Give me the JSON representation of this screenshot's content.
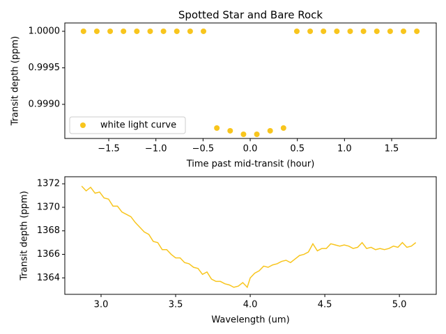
{
  "chart_data": [
    {
      "type": "scatter",
      "title": "Spotted Star and Bare Rock",
      "xlabel": "Time past mid-transit (hour)",
      "ylabel": "Transit depth (ppm)",
      "legend": "lower left",
      "series": [
        {
          "name": "white light curve",
          "color": "#f8c51d",
          "x": [
            -1.7678,
            -1.6264,
            -1.485,
            -1.3436,
            -1.2022,
            -1.0608,
            -0.9194,
            -0.778,
            -0.6366,
            -0.4952,
            -0.3538,
            -0.2124,
            -0.071,
            0.0704,
            0.2118,
            0.3532,
            0.4946,
            0.636,
            0.7774,
            0.9188,
            1.0602,
            1.2016,
            1.343,
            1.4844,
            1.6258,
            1.7672
          ],
          "values": [
            1.0,
            1.0,
            1.0,
            1.0,
            1.0,
            1.0,
            1.0,
            1.0,
            1.0,
            1.0,
            0.998676,
            0.998638,
            0.99859,
            0.99859,
            0.998638,
            0.998676,
            1.0,
            1.0,
            1.0,
            1.0,
            1.0,
            1.0,
            1.0,
            1.0,
            1.0,
            1.0
          ]
        }
      ],
      "xlim": [
        -1.966,
        1.973
      ],
      "ylim": [
        0.998533,
        1.000114
      ],
      "xticks": [
        {
          "value": -1.5,
          "label": "−1.5"
        },
        {
          "value": -1.0,
          "label": "−1.0"
        },
        {
          "value": -0.5,
          "label": "−0.5"
        },
        {
          "value": 0.0,
          "label": "0.0"
        },
        0.5,
        {
          "value": 1.0,
          "label": "1.0"
        },
        1.5
      ],
      "yticks": [
        {
          "value": 0.999,
          "label": "0.9990"
        },
        {
          "value": 0.9995,
          "label": "0.9995"
        },
        {
          "value": 1.0,
          "label": "1.0000"
        }
      ]
    },
    {
      "type": "line",
      "xlabel": "Wavelength (um)",
      "ylabel": "Transit depth (ppm)",
      "series": [
        {
          "color": "#f8c51d",
          "x": [
            2.87,
            2.9,
            2.93,
            2.96,
            2.99,
            3.02,
            3.05,
            3.08,
            3.11,
            3.14,
            3.17,
            3.2,
            3.23,
            3.26,
            3.29,
            3.32,
            3.35,
            3.38,
            3.41,
            3.44,
            3.47,
            3.5,
            3.53,
            3.56,
            3.59,
            3.62,
            3.65,
            3.68,
            3.71,
            3.74,
            3.77,
            3.8,
            3.83,
            3.86,
            3.89,
            3.92,
            3.95,
            3.98,
            4.0,
            4.03,
            4.06,
            4.09,
            4.12,
            4.15,
            4.18,
            4.21,
            4.24,
            4.27,
            4.3,
            4.33,
            4.36,
            4.39,
            4.42,
            4.45,
            4.48,
            4.51,
            4.54,
            4.57,
            4.6,
            4.63,
            4.66,
            4.69,
            4.72,
            4.75,
            4.78,
            4.81,
            4.84,
            4.87,
            4.9,
            4.93,
            4.96,
            4.99,
            5.02,
            5.05,
            5.08,
            5.11
          ],
          "values": [
            1371.8,
            1371.4,
            1371.7,
            1371.2,
            1371.3,
            1370.8,
            1370.7,
            1370.1,
            1370.1,
            1369.6,
            1369.4,
            1369.2,
            1368.7,
            1368.3,
            1367.9,
            1367.7,
            1367.1,
            1367.0,
            1366.4,
            1366.4,
            1366.0,
            1365.7,
            1365.7,
            1365.3,
            1365.2,
            1364.9,
            1364.8,
            1364.3,
            1364.5,
            1363.9,
            1363.7,
            1363.7,
            1363.5,
            1363.4,
            1363.2,
            1363.3,
            1363.6,
            1363.2,
            1364.0,
            1364.4,
            1364.6,
            1365.0,
            1364.9,
            1365.1,
            1365.2,
            1365.4,
            1365.5,
            1365.3,
            1365.6,
            1365.9,
            1366.0,
            1366.2,
            1366.9,
            1366.3,
            1366.5,
            1366.5,
            1366.9,
            1366.8,
            1366.7,
            1366.8,
            1366.7,
            1366.5,
            1366.6,
            1367.0,
            1366.5,
            1366.6,
            1366.4,
            1366.5,
            1366.4,
            1366.5,
            1366.7,
            1366.6,
            1367.0,
            1366.6,
            1366.7,
            1367.0
          ]
        }
      ],
      "xlim": [
        2.757,
        5.247
      ],
      "ylim": [
        1362.6,
        1372.6
      ],
      "xticks": [
        {
          "value": 3.0,
          "label": "3.0"
        },
        3.5,
        {
          "value": 4.0,
          "label": "4.0"
        },
        4.5,
        {
          "value": 5.0,
          "label": "5.0"
        }
      ],
      "yticks": [
        1364,
        1366,
        1368,
        1370,
        1372
      ]
    }
  ]
}
